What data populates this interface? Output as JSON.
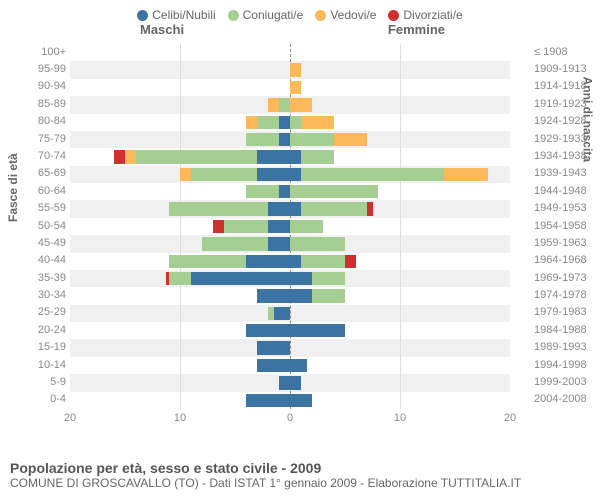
{
  "legend": [
    {
      "label": "Celibi/Nubili",
      "color": "#3b73a3"
    },
    {
      "label": "Coniugati/e",
      "color": "#a5ce93"
    },
    {
      "label": "Vedovi/e",
      "color": "#fbb95a"
    },
    {
      "label": "Divorziati/e",
      "color": "#d02f2d"
    }
  ],
  "chart": {
    "header_male": "Maschi",
    "header_female": "Femmine",
    "ylabel_left": "Fasce di età",
    "ylabel_right": "Anni di nascita",
    "max": 20,
    "xticks": [
      20,
      10,
      0,
      10,
      20
    ],
    "age_labels": [
      "100+",
      "95-99",
      "90-94",
      "85-89",
      "80-84",
      "75-79",
      "70-74",
      "65-69",
      "60-64",
      "55-59",
      "50-54",
      "45-49",
      "40-44",
      "35-39",
      "30-34",
      "25-29",
      "20-24",
      "15-19",
      "10-14",
      "5-9",
      "0-4"
    ],
    "birth_labels": [
      "≤ 1908",
      "1909-1913",
      "1914-1918",
      "1919-1923",
      "1924-1928",
      "1929-1933",
      "1934-1938",
      "1939-1943",
      "1944-1948",
      "1949-1953",
      "1954-1958",
      "1959-1963",
      "1964-1968",
      "1969-1973",
      "1974-1978",
      "1979-1983",
      "1984-1988",
      "1989-1993",
      "1994-1998",
      "1999-2003",
      "2004-2008"
    ],
    "colors": {
      "celibi": "#3b73a3",
      "coniugati": "#a5ce93",
      "vedovi": "#fbb95a",
      "divorziati": "#d02f2d",
      "bg": "#ffffff",
      "plot_bg": "#f7f7f7",
      "grid": "#dddddd"
    },
    "bars": [
      {
        "m": {
          "ce": 0,
          "co": 0,
          "ve": 0,
          "di": 0
        },
        "f": {
          "ce": 0,
          "co": 0,
          "ve": 0,
          "di": 0
        }
      },
      {
        "m": {
          "ce": 0,
          "co": 0,
          "ve": 0,
          "di": 0
        },
        "f": {
          "ce": 0,
          "co": 0,
          "ve": 1,
          "di": 0
        }
      },
      {
        "m": {
          "ce": 0,
          "co": 0,
          "ve": 0,
          "di": 0
        },
        "f": {
          "ce": 0,
          "co": 0,
          "ve": 1,
          "di": 0
        }
      },
      {
        "m": {
          "ce": 0,
          "co": 1,
          "ve": 1,
          "di": 0
        },
        "f": {
          "ce": 0,
          "co": 0,
          "ve": 2,
          "di": 0
        }
      },
      {
        "m": {
          "ce": 1,
          "co": 2,
          "ve": 1,
          "di": 0
        },
        "f": {
          "ce": 0,
          "co": 1,
          "ve": 3,
          "di": 0
        }
      },
      {
        "m": {
          "ce": 1,
          "co": 3,
          "ve": 0,
          "di": 0
        },
        "f": {
          "ce": 0,
          "co": 4,
          "ve": 3,
          "di": 0
        }
      },
      {
        "m": {
          "ce": 3,
          "co": 11,
          "ve": 1,
          "di": 1
        },
        "f": {
          "ce": 1,
          "co": 3,
          "ve": 0,
          "di": 0
        }
      },
      {
        "m": {
          "ce": 3,
          "co": 6,
          "ve": 1,
          "di": 0
        },
        "f": {
          "ce": 1,
          "co": 13,
          "ve": 4,
          "di": 0
        }
      },
      {
        "m": {
          "ce": 1,
          "co": 3,
          "ve": 0,
          "di": 0
        },
        "f": {
          "ce": 0,
          "co": 8,
          "ve": 0,
          "di": 0
        }
      },
      {
        "m": {
          "ce": 2,
          "co": 9,
          "ve": 0,
          "di": 0
        },
        "f": {
          "ce": 1,
          "co": 6,
          "ve": 0,
          "di": 0.5
        }
      },
      {
        "m": {
          "ce": 2,
          "co": 4,
          "ve": 0,
          "di": 1
        },
        "f": {
          "ce": 0,
          "co": 3,
          "ve": 0,
          "di": 0
        }
      },
      {
        "m": {
          "ce": 2,
          "co": 6,
          "ve": 0,
          "di": 0
        },
        "f": {
          "ce": 0,
          "co": 5,
          "ve": 0,
          "di": 0
        }
      },
      {
        "m": {
          "ce": 4,
          "co": 7,
          "ve": 0,
          "di": 0
        },
        "f": {
          "ce": 1,
          "co": 4,
          "ve": 0,
          "di": 1
        }
      },
      {
        "m": {
          "ce": 9,
          "co": 2,
          "ve": 0,
          "di": 0.3
        },
        "f": {
          "ce": 2,
          "co": 3,
          "ve": 0,
          "di": 0
        }
      },
      {
        "m": {
          "ce": 3,
          "co": 0,
          "ve": 0,
          "di": 0
        },
        "f": {
          "ce": 2,
          "co": 3,
          "ve": 0,
          "di": 0
        }
      },
      {
        "m": {
          "ce": 1.5,
          "co": 0.5,
          "ve": 0,
          "di": 0
        },
        "f": {
          "ce": 0,
          "co": 0,
          "ve": 0,
          "di": 0
        }
      },
      {
        "m": {
          "ce": 4,
          "co": 0,
          "ve": 0,
          "di": 0
        },
        "f": {
          "ce": 5,
          "co": 0,
          "ve": 0,
          "di": 0
        }
      },
      {
        "m": {
          "ce": 3,
          "co": 0,
          "ve": 0,
          "di": 0
        },
        "f": {
          "ce": 0,
          "co": 0,
          "ve": 0,
          "di": 0
        }
      },
      {
        "m": {
          "ce": 3,
          "co": 0,
          "ve": 0,
          "di": 0
        },
        "f": {
          "ce": 1.5,
          "co": 0,
          "ve": 0,
          "di": 0
        }
      },
      {
        "m": {
          "ce": 1,
          "co": 0,
          "ve": 0,
          "di": 0
        },
        "f": {
          "ce": 1,
          "co": 0,
          "ve": 0,
          "di": 0
        }
      },
      {
        "m": {
          "ce": 4,
          "co": 0,
          "ve": 0,
          "di": 0
        },
        "f": {
          "ce": 2,
          "co": 0,
          "ve": 0,
          "di": 0
        }
      }
    ]
  },
  "footer": {
    "title": "Popolazione per età, sesso e stato civile - 2009",
    "sub": "COMUNE DI GROSCAVALLO (TO) - Dati ISTAT 1° gennaio 2009 - Elaborazione TUTTITALIA.IT"
  }
}
